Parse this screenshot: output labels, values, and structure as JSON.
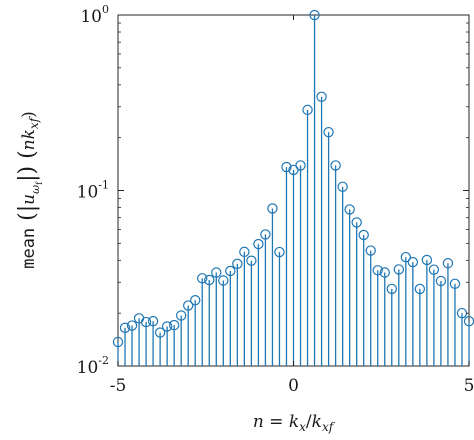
{
  "chart_data": {
    "type": "stem",
    "xlabel": "n = k_x / k_xf",
    "ylabel": "mean(|û_ωf|)(n k_xf)",
    "xlim": [
      -5,
      5
    ],
    "ylim": [
      0.01,
      1
    ],
    "yscale": "log",
    "grid": false,
    "color": "#1f77b4",
    "xticks": [
      -5,
      0,
      5
    ],
    "xtick_labels": [
      "-5",
      "0",
      "5"
    ],
    "yticks": [
      0.01,
      0.1,
      1
    ],
    "ytick_labels": [
      {
        "base": "10",
        "exp": "-2"
      },
      {
        "base": "10",
        "exp": "-1"
      },
      {
        "base": "10",
        "exp": "0"
      }
    ],
    "x": [
      -5.0,
      -4.8,
      -4.6,
      -4.4,
      -4.2,
      -4.0,
      -3.8,
      -3.6,
      -3.4,
      -3.2,
      -3.0,
      -2.8,
      -2.6,
      -2.4,
      -2.2,
      -2.0,
      -1.8,
      -1.6,
      -1.4,
      -1.2,
      -1.0,
      -0.8,
      -0.6,
      -0.4,
      -0.2,
      0.0,
      0.2,
      0.4,
      0.6,
      0.8,
      1.0,
      1.2,
      1.4,
      1.6,
      1.8,
      2.0,
      2.2,
      2.4,
      2.6,
      2.8,
      3.0,
      3.2,
      3.4,
      3.6,
      3.8,
      4.0,
      4.2,
      4.4,
      4.6,
      4.8,
      5.0
    ],
    "y": [
      0.0137,
      0.0165,
      0.017,
      0.0187,
      0.0178,
      0.018,
      0.0155,
      0.0168,
      0.0171,
      0.0194,
      0.0221,
      0.0237,
      0.0316,
      0.0309,
      0.0341,
      0.0307,
      0.0348,
      0.0382,
      0.0447,
      0.0398,
      0.0495,
      0.0562,
      0.079,
      0.0446,
      0.136,
      0.131,
      0.139,
      0.288,
      0.999,
      0.342,
      0.215,
      0.139,
      0.105,
      0.078,
      0.0658,
      0.0558,
      0.0455,
      0.0351,
      0.0341,
      0.0275,
      0.0355,
      0.0417,
      0.0391,
      0.0275,
      0.0402,
      0.0354,
      0.0305,
      0.0385,
      0.0294,
      0.02,
      0.018
    ]
  },
  "axes": {
    "ylabel_parts": {
      "func": "mean",
      "var": "u",
      "sub": "ω",
      "subsub": "f",
      "arg_n": "n",
      "arg_k": "k",
      "arg_sub": "xf"
    },
    "xlabel_parts": {
      "lhs": "n",
      "eq": " = ",
      "num": "k",
      "num_sub": "x",
      "slash": "/",
      "den": "k",
      "den_sub": "xf"
    }
  }
}
